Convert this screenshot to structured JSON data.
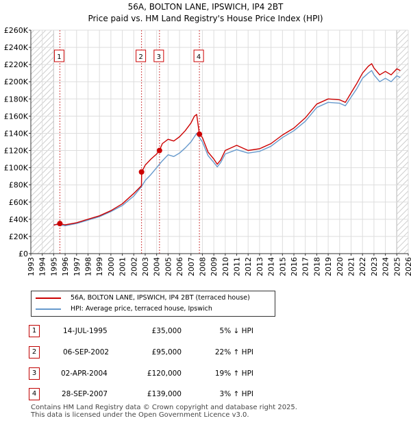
{
  "header": {
    "title": "56A, BOLTON LANE, IPSWICH, IP4 2BT",
    "subtitle": "Price paid vs. HM Land Registry's House Price Index (HPI)"
  },
  "chart_data": {
    "type": "line",
    "title": "56A, BOLTON LANE, IPSWICH, IP4 2BT",
    "subtitle": "Price paid vs. HM Land Registry's House Price Index (HPI)",
    "xlabel": "",
    "ylabel": "",
    "xlim": [
      1993,
      2026
    ],
    "ylim": [
      0,
      260000
    ],
    "x_ticks": [
      1993,
      1994,
      1995,
      1996,
      1997,
      1998,
      1999,
      2000,
      2001,
      2002,
      2003,
      2004,
      2005,
      2006,
      2007,
      2008,
      2009,
      2010,
      2011,
      2012,
      2013,
      2014,
      2015,
      2016,
      2017,
      2018,
      2019,
      2020,
      2021,
      2022,
      2023,
      2024,
      2025,
      2026
    ],
    "y_ticks": [
      0,
      20000,
      40000,
      60000,
      80000,
      100000,
      120000,
      140000,
      160000,
      180000,
      200000,
      220000,
      240000,
      260000
    ],
    "y_tick_labels": [
      "£0",
      "£20K",
      "£40K",
      "£60K",
      "£80K",
      "£100K",
      "£120K",
      "£140K",
      "£160K",
      "£180K",
      "£200K",
      "£220K",
      "£240K",
      "£260K"
    ],
    "grid": true,
    "hatched_ranges": [
      [
        1993,
        1995.0
      ],
      [
        2025.0,
        2026
      ]
    ],
    "series": [
      {
        "name": "56A, BOLTON LANE, IPSWICH, IP4 2BT (terraced house)",
        "color": "#cc0000",
        "x": [
          1995.0,
          1995.5,
          1996,
          1997,
          1998,
          1999,
          2000,
          2001,
          2002,
          2002.67,
          2002.69,
          2003,
          2003.5,
          2004.0,
          2004.25,
          2004.5,
          2005,
          2005.5,
          2006,
          2006.5,
          2007,
          2007.3,
          2007.5,
          2007.74,
          2008,
          2008.5,
          2009,
          2009.3,
          2009.6,
          2010,
          2011,
          2012,
          2013,
          2014,
          2015,
          2016,
          2017,
          2018,
          2019,
          2020,
          2020.5,
          2021,
          2021.5,
          2022,
          2022.5,
          2022.8,
          2023,
          2023.5,
          2024,
          2024.5,
          2025,
          2025.3
        ],
        "y": [
          33000,
          35000,
          33500,
          36000,
          40000,
          44000,
          50000,
          58000,
          70000,
          79000,
          95000,
          103000,
          110000,
          116000,
          120000,
          128000,
          133000,
          131000,
          136000,
          143000,
          152000,
          160000,
          162000,
          139000,
          135000,
          118000,
          110000,
          104000,
          109000,
          120000,
          126000,
          120000,
          122000,
          128000,
          138000,
          146000,
          158000,
          174000,
          180000,
          179000,
          176000,
          187000,
          198000,
          210000,
          218000,
          221000,
          216000,
          208000,
          212000,
          208000,
          215000,
          213000
        ]
      },
      {
        "name": "HPI: Average price, terraced house, Ipswich",
        "color": "#6699cc",
        "x": [
          1995.0,
          1995.5,
          1996,
          1997,
          1998,
          1999,
          2000,
          2001,
          2002,
          2002.67,
          2003,
          2003.5,
          2004.0,
          2004.25,
          2004.5,
          2005,
          2005.5,
          2006,
          2006.5,
          2007,
          2007.3,
          2007.5,
          2007.74,
          2008,
          2008.5,
          2009,
          2009.3,
          2009.6,
          2010,
          2011,
          2012,
          2013,
          2014,
          2015,
          2016,
          2017,
          2018,
          2019,
          2020,
          2020.5,
          2021,
          2021.5,
          2022,
          2022.5,
          2022.8,
          2023,
          2023.5,
          2024,
          2024.5,
          2025,
          2025.3
        ],
        "y": [
          34000,
          33500,
          32500,
          35000,
          39000,
          43000,
          49000,
          56000,
          67000,
          78000,
          85000,
          92000,
          100000,
          104000,
          108000,
          115000,
          113000,
          117000,
          123000,
          130000,
          136000,
          140000,
          135000,
          130000,
          114000,
          106000,
          101000,
          106000,
          116000,
          121000,
          117000,
          119000,
          125000,
          135000,
          143000,
          154000,
          170000,
          176000,
          175000,
          172000,
          182000,
          192000,
          204000,
          210000,
          213000,
          208000,
          200000,
          204000,
          200000,
          207000,
          205000
        ]
      }
    ],
    "sales": [
      {
        "label": "1",
        "x": 1995.54,
        "y": 35000
      },
      {
        "label": "2",
        "x": 2002.68,
        "y": 95000
      },
      {
        "label": "3",
        "x": 2004.25,
        "y": 120000
      },
      {
        "label": "4",
        "x": 2007.74,
        "y": 139000
      }
    ]
  },
  "legend": {
    "items": [
      {
        "label": "56A, BOLTON LANE, IPSWICH, IP4 2BT (terraced house)",
        "color": "#cc0000"
      },
      {
        "label": "HPI: Average price, terraced house, Ipswich",
        "color": "#6699cc"
      }
    ]
  },
  "table": {
    "rows": [
      {
        "num": "1",
        "date": "14-JUL-1995",
        "price": "£35,000",
        "hpi": "5% ↓ HPI"
      },
      {
        "num": "2",
        "date": "06-SEP-2002",
        "price": "£95,000",
        "hpi": "22% ↑ HPI"
      },
      {
        "num": "3",
        "date": "02-APR-2004",
        "price": "£120,000",
        "hpi": "19% ↑ HPI"
      },
      {
        "num": "4",
        "date": "28-SEP-2007",
        "price": "£139,000",
        "hpi": "3% ↑ HPI"
      }
    ]
  },
  "footer": {
    "line1": "Contains HM Land Registry data © Crown copyright and database right 2025.",
    "line2": "This data is licensed under the Open Government Licence v3.0."
  }
}
